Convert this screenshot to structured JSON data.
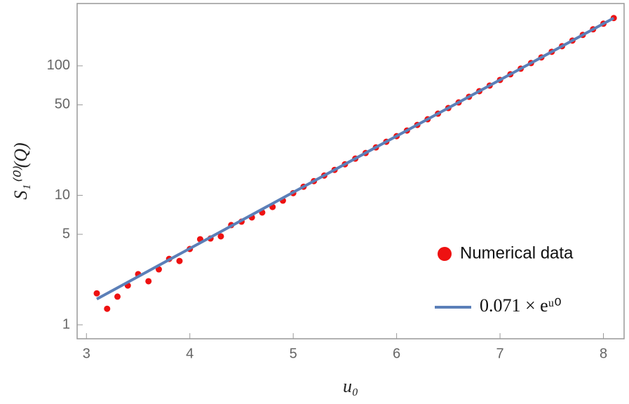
{
  "chart_data": {
    "type": "scatter",
    "x_label": "u₀",
    "y_label": "S₁⁽⁰⁾(Q)",
    "xlim": [
      2.91,
      8.2
    ],
    "ylim": [
      0.78,
      303
    ],
    "xticks": [
      3,
      4,
      5,
      6,
      7,
      8
    ],
    "yticks": [
      1,
      5,
      10,
      50,
      100
    ],
    "y_scale": "log",
    "legend": "lower right",
    "series": [
      {
        "name": "Numerical data",
        "type": "scatter",
        "color": "#ee1111",
        "x": [
          3.1,
          3.2,
          3.3,
          3.4,
          3.5,
          3.6,
          3.7,
          3.8,
          3.9,
          4.0,
          4.1,
          4.2,
          4.3,
          4.4,
          4.5,
          4.6,
          4.7,
          4.8,
          4.9,
          5.0,
          5.1,
          5.2,
          5.3,
          5.4,
          5.5,
          5.6,
          5.7,
          5.8,
          5.9,
          6.0,
          6.1,
          6.2,
          6.3,
          6.4,
          6.5,
          6.6,
          6.7,
          6.8,
          6.9,
          7.0,
          7.1,
          7.2,
          7.3,
          7.4,
          7.5,
          7.6,
          7.7,
          7.8,
          7.9,
          8.0,
          8.1
        ],
        "values": [
          1.75,
          1.33,
          1.65,
          2.01,
          2.46,
          2.17,
          2.68,
          3.23,
          3.11,
          3.85,
          4.58,
          4.64,
          4.82,
          5.89,
          6.26,
          6.75,
          7.37,
          8.13,
          9.1,
          10.4,
          11.65,
          12.87,
          14.22,
          15.72,
          17.37,
          19.2,
          21.22,
          23.45,
          25.92,
          28.64,
          31.66,
          34.98,
          38.67,
          42.73,
          47.22,
          52.19,
          57.68,
          63.74,
          70.45,
          77.86,
          86.05,
          95.1,
          105.1,
          116.2,
          128.4,
          141.9,
          156.8,
          173.3,
          191.5,
          211.6,
          233.9
        ]
      },
      {
        "name": "0.071 × eᵘ⁰",
        "type": "line",
        "color": "#5b7fb8",
        "x": [
          3.1,
          8.1
        ],
        "values": [
          1.58,
          233.9
        ]
      }
    ]
  }
}
